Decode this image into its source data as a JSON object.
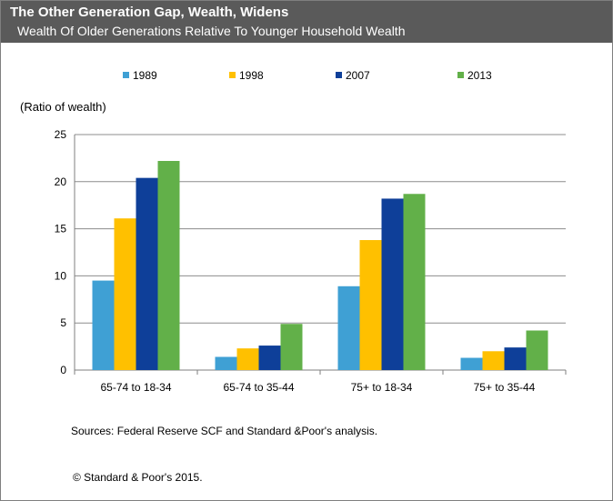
{
  "chart_data": {
    "type": "bar",
    "title": "The Other Generation Gap, Wealth, Widens",
    "subtitle": "Wealth Of Older Generations Relative To Younger Household Wealth",
    "ylabel": "(Ratio of wealth)",
    "ylim": [
      0,
      25
    ],
    "yticks": [
      "0",
      "5",
      "10",
      "15",
      "20",
      "25"
    ],
    "grid": true,
    "legend": "top",
    "categories": [
      "65-74 to 18-34",
      "65-74 to 35-44",
      "75+ to 18-34",
      "75+  to 35-44"
    ],
    "series": [
      {
        "name": "1989",
        "color": "#3fa0d4",
        "values": [
          9.5,
          1.4,
          8.9,
          1.3
        ]
      },
      {
        "name": "1998",
        "color": "#ffc000",
        "values": [
          16.1,
          2.3,
          13.8,
          2.0
        ]
      },
      {
        "name": "2007",
        "color": "#0e3f99",
        "values": [
          20.4,
          2.6,
          18.2,
          2.4
        ]
      },
      {
        "name": "2013",
        "color": "#62b049",
        "values": [
          22.2,
          4.9,
          18.7,
          4.2
        ]
      }
    ]
  },
  "notes": {
    "sources": "Sources: Federal Reserve SCF and Standard &Poor's analysis.",
    "copyright": "© Standard & Poor's 2015."
  }
}
